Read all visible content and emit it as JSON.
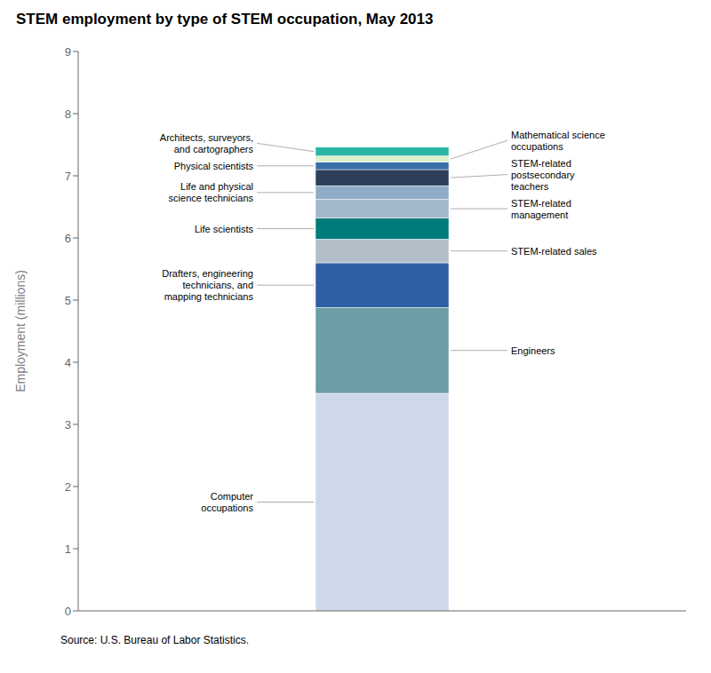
{
  "chart_data": {
    "type": "bar",
    "title": "STEM employment by type of STEM occupation, May 2013",
    "ylabel": "Employment (millions)",
    "source": "Source: U.S. Bureau of Labor Statistics.",
    "categories": [
      null
    ],
    "stacked": true,
    "grid": false,
    "ylim": [
      0,
      9
    ],
    "yticks": [
      0,
      1,
      2,
      3,
      4,
      5,
      6,
      7,
      8,
      9
    ],
    "series": [
      {
        "name": "Computer\noccupations",
        "color": "#cdd8ea",
        "values": [
          3.5
        ]
      },
      {
        "name": "Engineers",
        "color": "#6b9ea6",
        "values": [
          1.38
        ]
      },
      {
        "name": "Drafters, engineering\ntechnicians, and\nmapping technicians",
        "color": "#2e5fa3",
        "values": [
          0.72
        ]
      },
      {
        "name": "STEM-related sales",
        "color": "#b2bec8",
        "values": [
          0.38
        ]
      },
      {
        "name": "Life scientists",
        "color": "#007b7b",
        "values": [
          0.34
        ]
      },
      {
        "name": "STEM-related\nmanagement",
        "color": "#a4b8cc",
        "values": [
          0.3
        ]
      },
      {
        "name": "Life and physical\nscience technicians",
        "color": "#8eacc8",
        "values": [
          0.22
        ]
      },
      {
        "name": "STEM-related\npostsecondary\nteachers",
        "color": "#2e3f5c",
        "values": [
          0.26
        ]
      },
      {
        "name": "Physical scientists",
        "color": "#3a6ea8",
        "values": [
          0.12
        ]
      },
      {
        "name": "Mathematical science\noccupations",
        "color": "#dff0d0",
        "values": [
          0.1
        ]
      },
      {
        "name": "Architects, surveyors,\nand cartographers",
        "color": "#2ab5a5",
        "values": [
          0.14
        ]
      }
    ]
  }
}
